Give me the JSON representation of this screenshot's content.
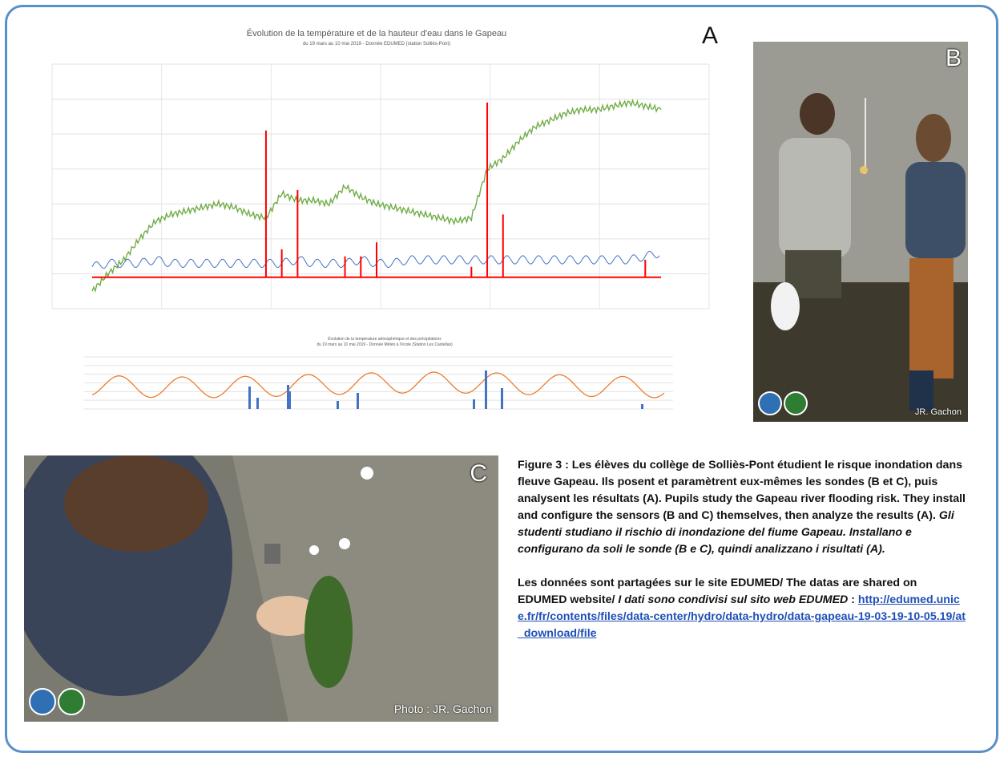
{
  "chart_a": {
    "title": "Évolution de la température et de la hauteur d'eau dans le Gapeau",
    "subtitle": "du 19 mars au 10 mai 2019 - Donnée EDUMED (station Solliès-Pont)",
    "panel_label": "A"
  },
  "chart_b": {
    "title_line1": "Évolution de la température atmosphérique et des précipitations",
    "title_line2": "du 19 mars au 10 mai 2019 - Donnée Météo à l'école (Station Les Castellas)"
  },
  "chart_data": [
    {
      "type": "line",
      "title": "Évolution de la température et de la hauteur d'eau dans le Gapeau",
      "subtitle": "du 19 mars au 10 mai 2019 - Donnée EDUMED (station Solliès-Pont)",
      "ylim": [
        0,
        70
      ],
      "y2lim": [
        0,
        18
      ],
      "x_range": [
        "19 mars",
        "10 mai"
      ],
      "grid": true,
      "series": [
        {
          "color": "#70ad47",
          "values": [
            5,
            10,
            14,
            20,
            25,
            27,
            28,
            29,
            30,
            29,
            27,
            26,
            33,
            31,
            31,
            30,
            35,
            32,
            30,
            29,
            28,
            27,
            26,
            25,
            26,
            40,
            43,
            48,
            52,
            54,
            56,
            57,
            57,
            58,
            59,
            58,
            57
          ]
        },
        {
          "color": "#4472c4",
          "values": [
            12,
            13,
            13,
            13,
            14,
            13,
            13,
            13,
            13,
            13,
            13,
            13,
            13,
            14,
            13,
            13,
            13,
            14,
            13,
            13,
            14,
            14,
            14,
            14,
            14,
            14,
            14,
            14,
            14,
            14,
            14,
            14,
            14,
            14,
            14,
            15,
            16
          ]
        },
        {
          "color": "#ff0000",
          "spikes": [
            {
              "i": 11,
              "v": 51
            },
            {
              "i": 12,
              "v": 17
            },
            {
              "i": 13,
              "v": 34
            },
            {
              "i": 16,
              "v": 15
            },
            {
              "i": 17,
              "v": 15
            },
            {
              "i": 18,
              "v": 19
            },
            {
              "i": 24,
              "v": 12
            },
            {
              "i": 25,
              "v": 59
            },
            {
              "i": 26,
              "v": 27
            },
            {
              "i": 35,
              "v": 14
            }
          ],
          "base": 9
        }
      ]
    },
    {
      "type": "line",
      "title": "Évolution de la température atmosphérique et des précipitations",
      "subtitle": "du 19 mars au 10 mai 2019 - Donnée Météo à l'école (Station Les Castellas)",
      "series": [
        {
          "color": "#ed7d31",
          "type": "line",
          "note": "oscillating daily temperature"
        },
        {
          "color": "#4472c4",
          "type": "bar",
          "note": "precipitation"
        }
      ]
    }
  ],
  "photo_b": {
    "panel_label": "B",
    "credit": "JR. Gachon"
  },
  "photo_c": {
    "panel_label": "C",
    "credit": "Photo : JR. Gachon"
  },
  "logo_text": "EDU MED",
  "caption": {
    "fr_lead": "Figure 3 :  Les élèves du collège de Solliès-Pont étudient le risque inondation dans fleuve Gapeau. Ils posent et paramètrent eux-mêmes les sondes (B et C), puis analysent les résultats (A).",
    "en": " Pupils study the Gapeau river flooding risk. They install and configure the sensors (B and C) themselves, then analyze the results (A). ",
    "it": "Gli studenti studiano il rischio di inondazione del fiume Gapeau. Installano e configurano da soli le sonde (B e C), quindi analizzano i risultati (A).",
    "data_fr_en": "Les données sont partagées sur le site EDUMED/ The datas are shared on EDUMED website/ ",
    "data_it": "I dati sono condivisi sul sito web EDUMED",
    "data_sep": " : ",
    "link": "http://edumed.unice.fr/fr/contents/files/data-center/hydro/data-hydro/data-gapeau-19-03-19-10-05.19/at_download/file"
  }
}
